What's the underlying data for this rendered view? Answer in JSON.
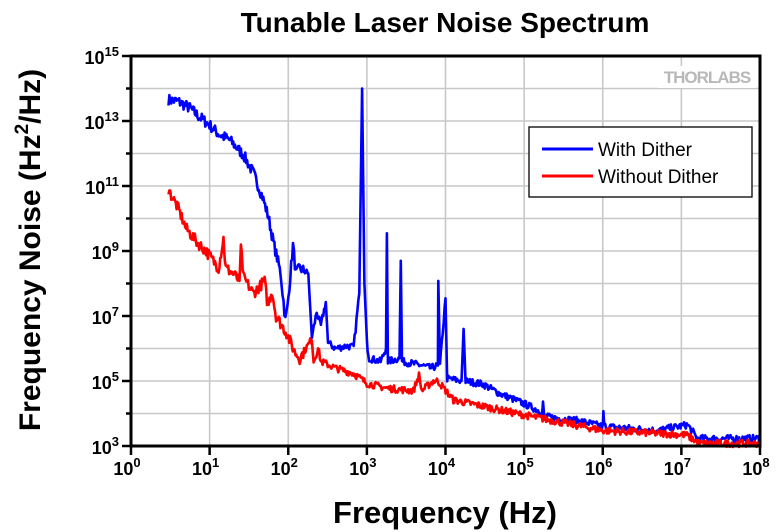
{
  "chart_data": {
    "type": "line",
    "title": "Tunable Laser Noise Spectrum",
    "xlabel": "Frequency (Hz)",
    "ylabel": {
      "main": "Frequency Noise (Hz",
      "sup": "2",
      "tail": "/Hz)"
    },
    "xscale": "log",
    "yscale": "log",
    "xlim": [
      1,
      100000000
    ],
    "ylim": [
      1000,
      1000000000000000
    ],
    "grid": true,
    "legend_position": "upper-right",
    "x_ticks": [
      {
        "base": "10",
        "exp": "0"
      },
      {
        "base": "10",
        "exp": "1"
      },
      {
        "base": "10",
        "exp": "2"
      },
      {
        "base": "10",
        "exp": "3"
      },
      {
        "base": "10",
        "exp": "4"
      },
      {
        "base": "10",
        "exp": "5"
      },
      {
        "base": "10",
        "exp": "6"
      },
      {
        "base": "10",
        "exp": "7"
      },
      {
        "base": "10",
        "exp": "8"
      }
    ],
    "y_ticks": [
      {
        "base": "10",
        "exp": "3"
      },
      {
        "base": "10",
        "exp": "5"
      },
      {
        "base": "10",
        "exp": "7"
      },
      {
        "base": "10",
        "exp": "9"
      },
      {
        "base": "10",
        "exp": "11"
      },
      {
        "base": "10",
        "exp": "13"
      },
      {
        "base": "10",
        "exp": "15"
      }
    ],
    "series": [
      {
        "name": "With Dither",
        "color": "#0000ff",
        "points": [
          [
            3,
            45000000000000.0
          ],
          [
            4,
            40000000000000.0
          ],
          [
            5.6,
            25000000000000.0
          ],
          [
            7,
            15000000000000.0
          ],
          [
            10,
            7500000000000.0
          ],
          [
            13,
            4000000000000.0
          ],
          [
            18,
            2600000000000.0
          ],
          [
            27,
            900000000000.0
          ],
          [
            36,
            250000000000.0
          ],
          [
            47,
            47000000000.0
          ],
          [
            56,
            11000000000.0
          ],
          [
            65,
            1800000000.0
          ],
          [
            80,
            210000000.0
          ],
          [
            92,
            7500000.0
          ],
          [
            98,
            20000000.0
          ],
          [
            115,
            1500000000.0
          ],
          [
            125,
            200000000.0
          ],
          [
            140,
            300000000.0
          ],
          [
            180,
            200000000.0
          ],
          [
            200,
            2300000.0
          ],
          [
            230,
            13000000.0
          ],
          [
            260,
            5000000.0
          ],
          [
            300,
            27000000.0
          ],
          [
            320,
            1500000.0
          ],
          [
            400,
            1000000.0
          ],
          [
            550,
            1200000.0
          ],
          [
            680,
            1100000.0
          ],
          [
            800,
            50000000.0
          ],
          [
            870,
            100000000000000.0
          ],
          [
            930,
            100000000.0
          ],
          [
            1000,
            1500000.0
          ],
          [
            1070,
            500000.0
          ],
          [
            1500,
            400000.0
          ],
          [
            1750,
            1000000.0
          ],
          [
            1800,
            3500000000.0
          ],
          [
            1850,
            400000.0
          ],
          [
            2600,
            500000.0
          ],
          [
            2700,
            500000000.0
          ],
          [
            2800,
            400000.0
          ],
          [
            5000,
            300000.0
          ],
          [
            6500,
            250000.0
          ],
          [
            8000,
            300000.0
          ],
          [
            8100,
            120000000.0
          ],
          [
            8500,
            300000.0
          ],
          [
            10000,
            35000000.0
          ],
          [
            10500,
            120000.0
          ],
          [
            16000,
            100000.0
          ],
          [
            17000,
            4000000.0
          ],
          [
            18000,
            100000.0
          ],
          [
            30000,
            80000.0
          ],
          [
            50000,
            40000.0
          ],
          [
            100000,
            20000.0
          ],
          [
            170000,
            11000.0
          ],
          [
            174000,
            20000.0
          ],
          [
            180000,
            8000.0
          ],
          [
            500000,
            6000.0
          ],
          [
            1000000,
            4000.0
          ],
          [
            1020000,
            10000.0
          ],
          [
            1050000,
            4000.0
          ],
          [
            5000000,
            3000.0
          ],
          [
            12000000,
            4500.0
          ],
          [
            16000000,
            1700.0
          ],
          [
            100000000,
            1700.0
          ]
        ]
      },
      {
        "name": "Without Dither",
        "color": "#ff0000",
        "points": [
          [
            3,
            75000000000.0
          ],
          [
            4,
            20000000000.0
          ],
          [
            5,
            5000000000.0
          ],
          [
            7,
            1800000000.0
          ],
          [
            9,
            1000000000.0
          ],
          [
            13,
            300000000.0
          ],
          [
            15,
            2400000000.0
          ],
          [
            16,
            300000000.0
          ],
          [
            20,
            200000000.0
          ],
          [
            24,
            120000000.0
          ],
          [
            25,
            1300000000.0
          ],
          [
            27,
            150000000.0
          ],
          [
            36,
            50000000.0
          ],
          [
            50,
            120000000.0
          ],
          [
            55,
            20000000.0
          ],
          [
            62,
            60000000.0
          ],
          [
            70,
            10000000.0
          ],
          [
            95,
            3000000.0
          ],
          [
            120,
            800000.0
          ],
          [
            140,
            500000.0
          ],
          [
            200,
            2000000.0
          ],
          [
            210,
            400000.0
          ],
          [
            240,
            1000000.0
          ],
          [
            260,
            400000.0
          ],
          [
            400,
            250000.0
          ],
          [
            680,
            170000.0
          ],
          [
            1000,
            85000.0
          ],
          [
            1800,
            60000.0
          ],
          [
            3900,
            50000.0
          ],
          [
            4600,
            150000.0
          ],
          [
            5000,
            50000.0
          ],
          [
            7000,
            100000.0
          ],
          [
            8000,
            100000.0
          ],
          [
            12600,
            26000.0
          ],
          [
            33000,
            16000.0
          ],
          [
            80000,
            10000.0
          ],
          [
            1000000,
            3000.0
          ],
          [
            11500000,
            2200.0
          ],
          [
            17000000,
            1200.0
          ],
          [
            100000000,
            1200.0
          ]
        ]
      }
    ]
  },
  "logo": "THORLABS"
}
